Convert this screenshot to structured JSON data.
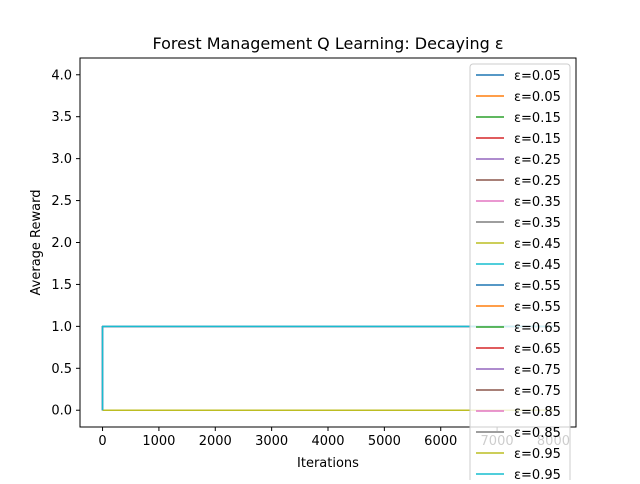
{
  "chart_data": {
    "type": "line",
    "title": "Forest Management Q Learning: Decaying ε",
    "xlabel": "Iterations",
    "ylabel": "Average Reward",
    "xlim": [
      -400,
      8400
    ],
    "ylim": [
      -0.2,
      4.2
    ],
    "xticks": [
      0,
      1000,
      2000,
      3000,
      4000,
      5000,
      6000,
      7000,
      8000
    ],
    "xtick_labels": [
      "0",
      "1000",
      "2000",
      "3000",
      "4000",
      "5000",
      "6000",
      "7000",
      "8000"
    ],
    "yticks": [
      0.0,
      0.5,
      1.0,
      1.5,
      2.0,
      2.5,
      3.0,
      3.5,
      4.0
    ],
    "ytick_labels": [
      "0.0",
      "0.5",
      "1.0",
      "1.5",
      "2.0",
      "2.5",
      "3.0",
      "3.5",
      "4.0"
    ],
    "grid": false,
    "legend_position": "upper-right",
    "series": [
      {
        "name": "ε=0.05",
        "color": "#1f77b4",
        "x": [
          0,
          0,
          8000
        ],
        "y": [
          0,
          1,
          1
        ]
      },
      {
        "name": "ε=0.05",
        "color": "#ff7f0e",
        "x": [
          0,
          8000
        ],
        "y": [
          0,
          0
        ]
      },
      {
        "name": "ε=0.15",
        "color": "#2ca02c",
        "x": [
          0,
          0,
          8000
        ],
        "y": [
          0,
          1,
          1
        ]
      },
      {
        "name": "ε=0.15",
        "color": "#d62728",
        "x": [
          0,
          8000
        ],
        "y": [
          0,
          0
        ]
      },
      {
        "name": "ε=0.25",
        "color": "#9467bd",
        "x": [
          0,
          0,
          8000
        ],
        "y": [
          0,
          1,
          1
        ]
      },
      {
        "name": "ε=0.25",
        "color": "#8c564b",
        "x": [
          0,
          8000
        ],
        "y": [
          0,
          0
        ]
      },
      {
        "name": "ε=0.35",
        "color": "#e377c2",
        "x": [
          0,
          0,
          8000
        ],
        "y": [
          0,
          1,
          1
        ]
      },
      {
        "name": "ε=0.35",
        "color": "#7f7f7f",
        "x": [
          0,
          8000
        ],
        "y": [
          0,
          0
        ]
      },
      {
        "name": "ε=0.45",
        "color": "#bcbd22",
        "x": [
          0,
          8000
        ],
        "y": [
          0,
          0
        ]
      },
      {
        "name": "ε=0.45",
        "color": "#17becf",
        "x": [
          0,
          0,
          8000
        ],
        "y": [
          0,
          1,
          1
        ]
      },
      {
        "name": "ε=0.55",
        "color": "#1f77b4",
        "x": [
          0,
          0,
          8000
        ],
        "y": [
          0,
          1,
          1
        ]
      },
      {
        "name": "ε=0.55",
        "color": "#ff7f0e",
        "x": [
          0,
          8000
        ],
        "y": [
          0,
          0
        ]
      },
      {
        "name": "ε=0.65",
        "color": "#2ca02c",
        "x": [
          0,
          0,
          8000
        ],
        "y": [
          0,
          1,
          1
        ]
      },
      {
        "name": "ε=0.65",
        "color": "#d62728",
        "x": [
          0,
          8000
        ],
        "y": [
          0,
          0
        ]
      },
      {
        "name": "ε=0.75",
        "color": "#9467bd",
        "x": [
          0,
          0,
          8000
        ],
        "y": [
          0,
          1,
          1
        ]
      },
      {
        "name": "ε=0.75",
        "color": "#8c564b",
        "x": [
          0,
          8000
        ],
        "y": [
          0,
          0
        ]
      },
      {
        "name": "ε=0.85",
        "color": "#e377c2",
        "x": [
          0,
          0,
          8000
        ],
        "y": [
          0,
          1,
          1
        ]
      },
      {
        "name": "ε=0.85",
        "color": "#7f7f7f",
        "x": [
          0,
          8000
        ],
        "y": [
          0,
          0
        ]
      },
      {
        "name": "ε=0.95",
        "color": "#bcbd22",
        "x": [
          0,
          8000
        ],
        "y": [
          0,
          0
        ]
      },
      {
        "name": "ε=0.95",
        "color": "#17becf",
        "x": [
          0,
          0,
          8000
        ],
        "y": [
          0,
          1,
          1
        ]
      }
    ]
  }
}
